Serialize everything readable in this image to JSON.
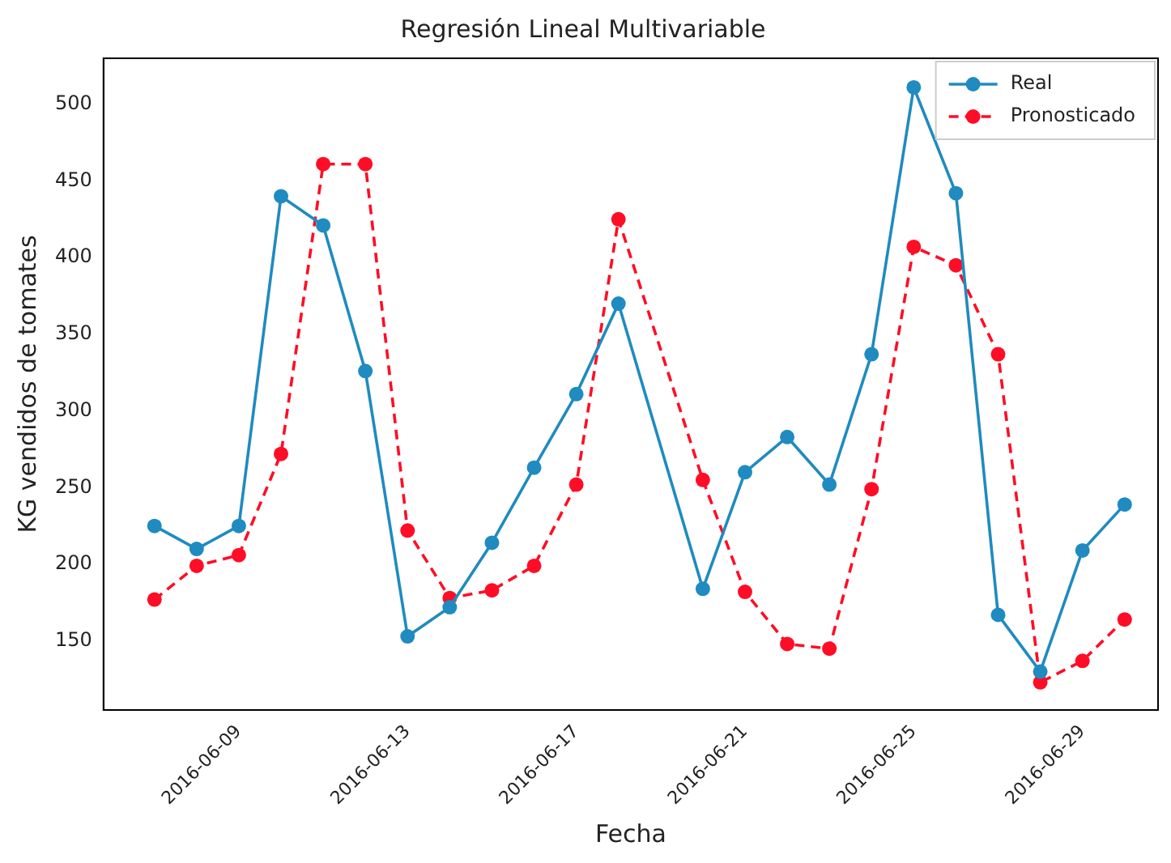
{
  "chart_data": {
    "type": "line",
    "title": "Regresión Lineal Multivariable",
    "xlabel": "Fecha",
    "ylabel": "KG vendidos de tomates",
    "x": [
      "2016-06-07",
      "2016-06-08",
      "2016-06-09",
      "2016-06-10",
      "2016-06-11",
      "2016-06-12",
      "2016-06-13",
      "2016-06-14",
      "2016-06-15",
      "2016-06-16",
      "2016-06-17",
      "2016-06-18",
      "2016-06-20",
      "2016-06-21",
      "2016-06-22",
      "2016-06-23",
      "2016-06-24",
      "2016-06-25",
      "2016-06-26",
      "2016-06-27",
      "2016-06-28",
      "2016-06-29",
      "2016-06-30"
    ],
    "series": [
      {
        "name": "Real",
        "color": "#1f8bc0",
        "line_style": "solid",
        "values": [
          225,
          210,
          225,
          440,
          421,
          326,
          153,
          172,
          214,
          263,
          311,
          370,
          184,
          260,
          283,
          252,
          337,
          511,
          442,
          167,
          130,
          209,
          239
        ]
      },
      {
        "name": "Pronosticado",
        "color": "#ff0d26",
        "line_style": "dashed",
        "values": [
          177,
          199,
          206,
          272,
          461,
          461,
          222,
          178,
          183,
          199,
          252,
          425,
          255,
          182,
          148,
          145,
          249,
          407,
          395,
          337,
          123,
          137,
          164
        ]
      }
    ],
    "xlim": [
      "2016-06-05T19:00",
      "2016-06-30T19:00"
    ],
    "xticks": [
      "2016-06-09",
      "2016-06-13",
      "2016-06-17",
      "2016-06-21",
      "2016-06-25",
      "2016-06-29"
    ],
    "ylim": [
      105,
      530
    ],
    "yticks": [
      150,
      200,
      250,
      300,
      350,
      400,
      450,
      500
    ],
    "grid": false,
    "legend": "top right",
    "marker": "circle"
  }
}
